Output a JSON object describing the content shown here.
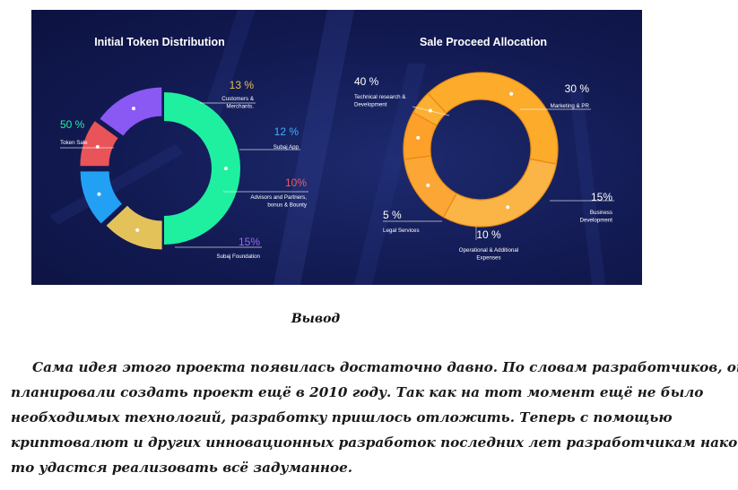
{
  "chart_data": [
    {
      "type": "pie",
      "title": "Initial Token Distribution",
      "categories": [
        "Token Sale",
        "Customers & Merchants.",
        "Subaj App",
        "Advisors and Partners, bonus & Bounty",
        "Subaj Foundation"
      ],
      "values": [
        50,
        13,
        12,
        10,
        15
      ],
      "value_labels": [
        "50 %",
        "13 %",
        "12 %",
        "10%",
        "15%"
      ],
      "label_lines": [
        [
          "Token Sale"
        ],
        [
          "Customers &",
          "Merchants."
        ],
        [
          "Subaj App"
        ],
        [
          "Advisors and Partners,",
          "bonus & Bounty"
        ],
        [
          "Subaj Foundation"
        ]
      ],
      "colors": [
        "#1ef0a0",
        "#e4c25a",
        "#22a0f4",
        "#e95458",
        "#8a58f2"
      ],
      "label_colors": [
        "#1ef0a0",
        "#e4c25a",
        "#3fb0f8",
        "#ef5b5f",
        "#9a6af5"
      ]
    },
    {
      "type": "pie",
      "title": "Sale Proceed Allocation",
      "categories": [
        "Technical research & Development",
        "Marketing & PR",
        "Business Development",
        "Operational & Additional Expenses",
        "Legal Services"
      ],
      "values": [
        40,
        30,
        15,
        10,
        5
      ],
      "value_labels": [
        "40 %",
        "30 %",
        "15%",
        "10 %",
        "5 %"
      ],
      "label_lines": [
        [
          "Technical research &",
          "Development"
        ],
        [
          "Marketing & PR"
        ],
        [
          "Business",
          "Development"
        ],
        [
          "Operational & Additional",
          "Expenses"
        ],
        [
          "Legal Services"
        ]
      ],
      "colors": [
        "#fcab2b",
        "#fbb446",
        "#fca735",
        "#fda12a",
        "#fcb033"
      ],
      "label_colors": [
        "#ffffff",
        "#ffffff",
        "#ffffff",
        "#ffffff",
        "#ffffff"
      ]
    }
  ],
  "article": {
    "heading": "Вывод",
    "paragraph_lines": [
      "Сама идея этого проекта появилась достаточно давно. По словам разработчиков, они",
      "планировали создать проект ещё в 2010 году. Так как на тот момент ещё не было",
      "необходимых технологий, разработку пришлось отложить. Теперь с помощью",
      "криптовалют и других инновационных разработок последних лет разработчикам наконец-",
      "то удастся реализовать всё задуманное."
    ]
  }
}
